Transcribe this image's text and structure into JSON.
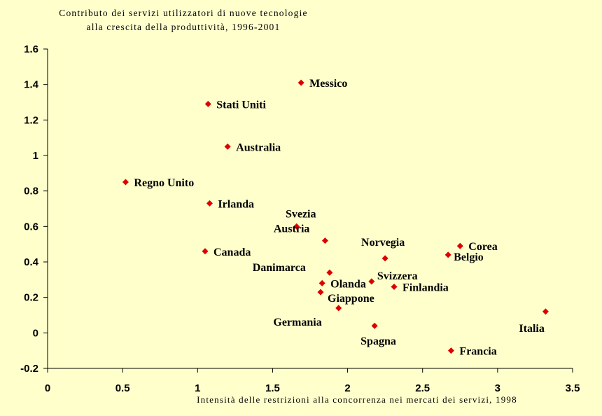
{
  "chart_data": {
    "type": "scatter",
    "title_lines": [
      "Contributo dei servizi utilizzatori di nuove tecnologie",
      "alla crescita della produttività, 1996-2001"
    ],
    "xlabel": "Intensità delle restrizioni alla concorrenza nei mercati dei servizi, 1998",
    "ylabel": "",
    "xlim": [
      0,
      3.5
    ],
    "ylim": [
      -0.2,
      1.6
    ],
    "x_ticks": [
      "0",
      "0.5",
      "1",
      "1.5",
      "2",
      "2.5",
      "3",
      "3.5"
    ],
    "y_ticks": [
      "-0.2",
      "0",
      "0.2",
      "0.4",
      "0.6",
      "0.8",
      "1",
      "1.2",
      "1.4",
      "1.6"
    ],
    "marker_color": "#DD0000",
    "grid": false,
    "points": [
      {
        "label": "Messico",
        "x": 1.69,
        "y": 1.41
      },
      {
        "label": "Stati Uniti",
        "x": 1.07,
        "y": 1.29
      },
      {
        "label": "Australia",
        "x": 1.2,
        "y": 1.05
      },
      {
        "label": "Regno Unito",
        "x": 0.52,
        "y": 0.85
      },
      {
        "label": "Irlanda",
        "x": 1.08,
        "y": 0.73
      },
      {
        "label": "Svezia",
        "x": 1.66,
        "y": 0.6
      },
      {
        "label": "Austria",
        "x": 1.85,
        "y": 0.52
      },
      {
        "label": "Canada",
        "x": 1.05,
        "y": 0.46
      },
      {
        "label": "Norvegia",
        "x": 2.25,
        "y": 0.42
      },
      {
        "label": "Corea",
        "x": 2.75,
        "y": 0.49
      },
      {
        "label": "Belgio",
        "x": 2.67,
        "y": 0.44
      },
      {
        "label": "Danimarca",
        "x": 1.88,
        "y": 0.34
      },
      {
        "label": "Svizzera",
        "x": 2.16,
        "y": 0.29
      },
      {
        "label": "Olanda",
        "x": 1.83,
        "y": 0.28
      },
      {
        "label": "Finlandia",
        "x": 2.31,
        "y": 0.26
      },
      {
        "label": "Giappone",
        "x": 1.82,
        "y": 0.23
      },
      {
        "label": "Germania",
        "x": 1.94,
        "y": 0.14
      },
      {
        "label": "Italia",
        "x": 3.32,
        "y": 0.12
      },
      {
        "label": "Spagna",
        "x": 2.18,
        "y": 0.04
      },
      {
        "label": "Francia",
        "x": 2.69,
        "y": -0.1
      }
    ]
  }
}
